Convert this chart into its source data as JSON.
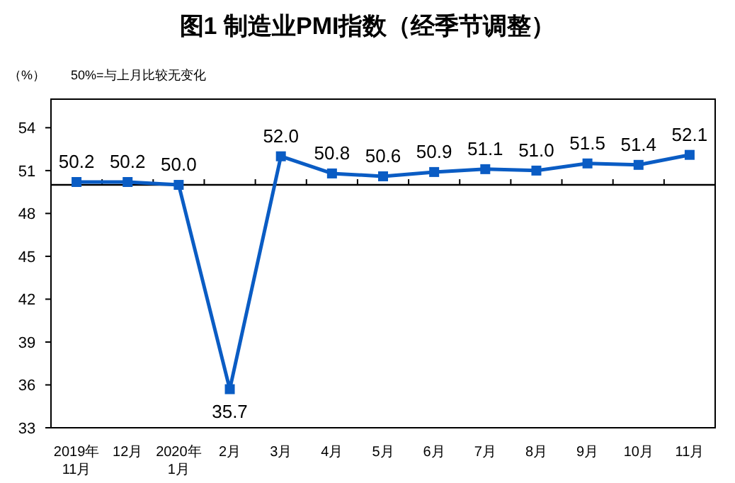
{
  "chart_data": {
    "type": "line",
    "title": "图1 制造业PMI指数（经季节调整）",
    "ylabel": "（%）",
    "annotations": [
      "50%=与上月比较无变化"
    ],
    "categories": [
      "2019年\n11月",
      "12月",
      "2020年\n1月",
      "2月",
      "3月",
      "4月",
      "5月",
      "6月",
      "7月",
      "8月",
      "9月",
      "10月",
      "11月"
    ],
    "series": [
      {
        "color": "#0a5cc4",
        "values": [
          50.2,
          50.2,
          50.0,
          35.7,
          52.0,
          50.8,
          50.6,
          50.9,
          51.1,
          51.0,
          51.5,
          51.4,
          52.1
        ],
        "value_labels": [
          "50.2",
          "50.2",
          "50.0",
          "35.7",
          "52.0",
          "50.8",
          "50.6",
          "50.9",
          "51.1",
          "51.0",
          "51.5",
          "51.4",
          "52.1"
        ]
      }
    ],
    "ylim": [
      33,
      56
    ],
    "yticks": [
      33,
      36,
      39,
      42,
      45,
      48,
      51,
      54
    ],
    "ref_lines": [
      {
        "axis": "y",
        "value": 50,
        "color": "#000000"
      }
    ],
    "marker": "square",
    "line_style": "solid"
  }
}
